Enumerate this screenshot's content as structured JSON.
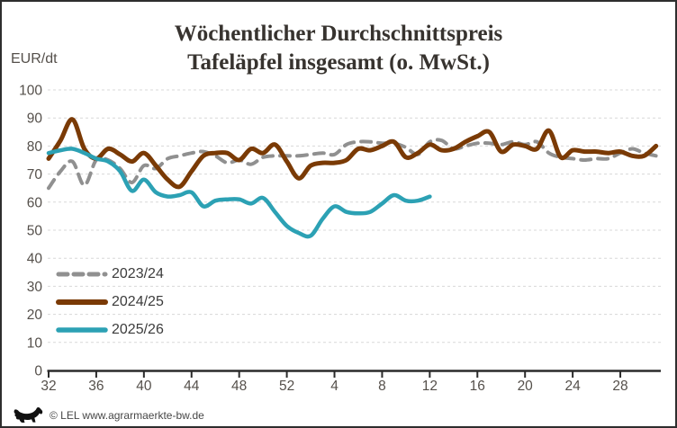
{
  "header": {
    "title_line1": "Wöchentlicher Durchschnittspreis",
    "title_line2": "Tafeläpfel insgesamt (o. MwSt.)",
    "unit_label": "EUR/dt"
  },
  "footer": {
    "credit": "© LEL www.agrarmaerkte-bw.de",
    "logo": "bw-lion-icon"
  },
  "chart_data": {
    "type": "line",
    "title": "Wöchentlicher Durchschnittspreis Tafeläpfel insgesamt (o. MwSt.)",
    "xlabel": "",
    "ylabel": "EUR/dt",
    "ylim": [
      0,
      100
    ],
    "ytick_step": 10,
    "ytick_labels": [
      "0",
      "10",
      "20",
      "30",
      "40",
      "50",
      "60",
      "70",
      "80",
      "90",
      "100"
    ],
    "grid": "horizontal-dashed",
    "legend_position": "left-middle",
    "x_weeks": [
      32,
      33,
      34,
      35,
      36,
      37,
      38,
      39,
      40,
      41,
      42,
      43,
      44,
      45,
      46,
      47,
      48,
      49,
      50,
      51,
      52,
      1,
      2,
      3,
      4,
      5,
      6,
      7,
      8,
      9,
      10,
      11,
      12,
      13,
      14,
      15,
      16,
      17,
      18,
      19,
      20,
      21,
      22,
      23,
      24,
      25,
      26,
      27,
      28,
      29,
      30,
      31
    ],
    "xtick_labels": [
      "32",
      "36",
      "40",
      "44",
      "48",
      "52",
      "4",
      "8",
      "12",
      "16",
      "20",
      "24",
      "28"
    ],
    "xtick_indices": [
      0,
      4,
      8,
      12,
      16,
      20,
      24,
      28,
      32,
      36,
      40,
      44,
      48
    ],
    "colors": {
      "grid": "#d8d8d8",
      "axis": "#2b2b2b",
      "tick_text": "#55504b",
      "title_text": "#37332f"
    },
    "series": [
      {
        "name": "2023/24",
        "color": "#909090",
        "style": "dashed",
        "width": 4,
        "values": [
          65,
          71,
          74.5,
          66,
          75,
          75,
          72,
          67,
          73,
          72,
          75.5,
          76.5,
          77.5,
          78,
          76.5,
          74,
          75,
          73.5,
          76,
          76.5,
          76.5,
          76.5,
          77,
          77.5,
          77,
          80.5,
          81.5,
          81.5,
          81,
          81,
          79.5,
          77,
          81.5,
          82,
          79,
          80,
          81,
          81,
          80.5,
          81.5,
          80.5,
          81.5,
          77.5,
          76,
          75.5,
          75,
          75.5,
          75.5,
          77.5,
          79,
          77.5,
          76.5
        ]
      },
      {
        "name": "2024/25",
        "color": "#7a3a05",
        "style": "solid",
        "width": 5,
        "values": [
          75.5,
          82,
          89.5,
          79,
          75.5,
          79,
          77,
          74.5,
          77.5,
          73,
          68,
          65.5,
          71,
          76.5,
          77.5,
          77.5,
          75,
          79,
          77.5,
          80.5,
          74.5,
          68.5,
          73,
          74,
          74,
          75,
          79,
          78.5,
          80,
          81.5,
          76,
          77.5,
          80.5,
          78.5,
          79,
          81.5,
          83.5,
          85,
          78,
          80.5,
          80,
          79,
          85.5,
          76,
          78.5,
          78,
          78,
          77.5,
          78,
          76.5,
          76.5,
          80
        ]
      },
      {
        "name": "2025/26",
        "color": "#2ca1b4",
        "style": "solid",
        "width": 4.5,
        "values": [
          77.5,
          78.5,
          79,
          77.5,
          75.5,
          74.5,
          71,
          64,
          68,
          63.5,
          62,
          62.5,
          63.5,
          58.5,
          60.5,
          61,
          61,
          59.5,
          61.5,
          56.5,
          51.5,
          49,
          48,
          54,
          58.5,
          56.5,
          56,
          56.5,
          59.5,
          62.5,
          60.5,
          60.5,
          62
        ]
      }
    ]
  }
}
